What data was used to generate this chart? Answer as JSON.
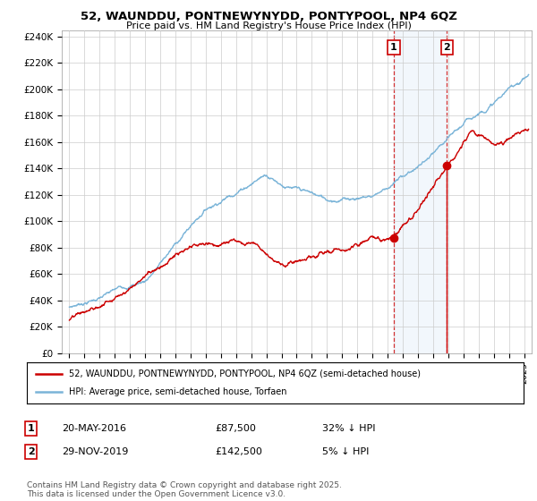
{
  "title": "52, WAUNDDU, PONTNEWYNYDD, PONTYPOOL, NP4 6QZ",
  "subtitle": "Price paid vs. HM Land Registry's House Price Index (HPI)",
  "ylabel_ticks": [
    "£0",
    "£20K",
    "£40K",
    "£60K",
    "£80K",
    "£100K",
    "£120K",
    "£140K",
    "£160K",
    "£180K",
    "£200K",
    "£220K",
    "£240K"
  ],
  "ytick_values": [
    0,
    20000,
    40000,
    60000,
    80000,
    100000,
    120000,
    140000,
    160000,
    180000,
    200000,
    220000,
    240000
  ],
  "ylim": [
    0,
    245000
  ],
  "xlim_start": 1994.5,
  "xlim_end": 2025.5,
  "hpi_color": "#7ab4d8",
  "hpi_fill_color": "#ddeeff",
  "paid_color": "#cc0000",
  "marker1_date": 2016.38,
  "marker1_price": 87500,
  "marker1_label": "20-MAY-2016",
  "marker1_pct": "32% ↓ HPI",
  "marker2_date": 2019.92,
  "marker2_price": 142500,
  "marker2_label": "29-NOV-2019",
  "marker2_pct": "5% ↓ HPI",
  "legend_line1": "52, WAUNDDU, PONTNEWYNYDD, PONTYPOOL, NP4 6QZ (semi-detached house)",
  "legend_line2": "HPI: Average price, semi-detached house, Torfaen",
  "footnote": "Contains HM Land Registry data © Crown copyright and database right 2025.\nThis data is licensed under the Open Government Licence v3.0.",
  "annotation1_label": "1",
  "annotation2_label": "2",
  "vline1_x": 2016.38,
  "vline2_x": 2019.92,
  "background_color": "#ffffff",
  "grid_color": "#cccccc"
}
